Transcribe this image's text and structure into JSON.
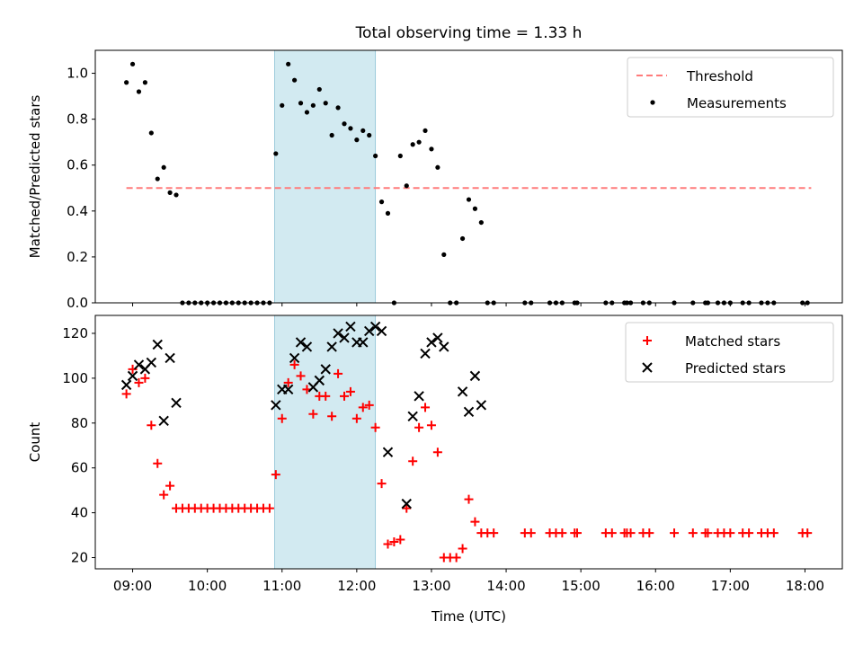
{
  "chart_data": [
    {
      "type": "scatter",
      "title": "Total observing time = 1.33 h",
      "ylabel": "Matched/Predicted stars",
      "xlabel": "",
      "ylim": [
        0,
        1.1
      ],
      "yticks": [
        "0.0",
        "0.2",
        "0.4",
        "0.6",
        "0.8",
        "1.0"
      ],
      "legend": {
        "position": "top-right",
        "entries": [
          {
            "label": "Threshold",
            "style": "dashed-line",
            "color": "#ff7b7b"
          },
          {
            "label": "Measurements",
            "style": "dot",
            "color": "#000000"
          }
        ]
      },
      "threshold": {
        "value": 0.5,
        "x_start": "08:55",
        "x_end": "18:05",
        "color": "#ff7b7b"
      },
      "shaded_span": {
        "x_start": "10:54",
        "x_end": "12:15",
        "color": "#add8e6"
      },
      "series": [
        {
          "name": "Measurements",
          "color": "#000000",
          "x": [
            "08:55",
            "09:00",
            "09:05",
            "09:10",
            "09:15",
            "09:20",
            "09:25",
            "09:30",
            "09:35",
            "09:40",
            "09:45",
            "09:50",
            "09:55",
            "10:00",
            "10:05",
            "10:10",
            "10:15",
            "10:20",
            "10:25",
            "10:30",
            "10:35",
            "10:40",
            "10:45",
            "10:50",
            "10:55",
            "11:00",
            "11:05",
            "11:10",
            "11:15",
            "11:20",
            "11:25",
            "11:30",
            "11:35",
            "11:40",
            "11:45",
            "11:50",
            "11:55",
            "12:00",
            "12:05",
            "12:10",
            "12:15",
            "12:20",
            "12:25",
            "12:30",
            "12:35",
            "12:40",
            "12:45",
            "12:50",
            "12:55",
            "13:00",
            "13:05",
            "13:10",
            "13:15",
            "13:20",
            "13:25",
            "13:30",
            "13:35",
            "13:40",
            "13:45",
            "13:50",
            "14:15",
            "14:20",
            "14:35",
            "14:40",
            "14:45",
            "14:55",
            "14:57",
            "15:20",
            "15:25",
            "15:35",
            "15:37",
            "15:40",
            "15:50",
            "15:55",
            "16:15",
            "16:30",
            "16:40",
            "16:42",
            "16:50",
            "16:55",
            "17:00",
            "17:10",
            "17:15",
            "17:25",
            "17:30",
            "17:35",
            "17:58",
            "18:02"
          ],
          "values": [
            0.96,
            1.04,
            0.92,
            0.96,
            0.74,
            0.54,
            0.59,
            0.48,
            0.47,
            0.0,
            0.0,
            0.0,
            0.0,
            0.0,
            0.0,
            0.0,
            0.0,
            0.0,
            0.0,
            0.0,
            0.0,
            0.0,
            0.0,
            0.0,
            0.65,
            0.86,
            1.04,
            0.97,
            0.87,
            0.83,
            0.86,
            0.93,
            0.87,
            0.73,
            0.85,
            0.78,
            0.76,
            0.71,
            0.75,
            0.73,
            0.64,
            0.44,
            0.39,
            0.0,
            0.64,
            0.51,
            0.69,
            0.7,
            0.75,
            0.67,
            0.59,
            0.21,
            0.0,
            0.0,
            0.28,
            0.45,
            0.41,
            0.35,
            0.0,
            0.0,
            0.0,
            0.0,
            0.0,
            0.0,
            0.0,
            0.0,
            0.0,
            0.0,
            0.0,
            0.0,
            0.0,
            0.0,
            0.0,
            0.0,
            0.0,
            0.0,
            0.0,
            0.0,
            0.0,
            0.0,
            0.0,
            0.0,
            0.0,
            0.0,
            0.0,
            0.0,
            0.0,
            0.0
          ]
        }
      ]
    },
    {
      "type": "scatter",
      "xlabel": "Time (UTC)",
      "ylabel": "Count",
      "ylim": [
        15,
        128
      ],
      "yticks": [
        "20",
        "40",
        "60",
        "80",
        "100",
        "120"
      ],
      "xticks": [
        "09:00",
        "10:00",
        "11:00",
        "12:00",
        "13:00",
        "14:00",
        "15:00",
        "16:00",
        "17:00",
        "18:00"
      ],
      "legend": {
        "position": "top-right",
        "entries": [
          {
            "label": "Matched stars",
            "style": "plus",
            "color": "#ff0000"
          },
          {
            "label": "Predicted stars",
            "style": "x",
            "color": "#000000"
          }
        ]
      },
      "shaded_span": {
        "x_start": "10:54",
        "x_end": "12:15",
        "color": "#add8e6"
      },
      "series": [
        {
          "name": "Matched stars",
          "marker": "plus",
          "color": "#ff0000",
          "x": [
            "08:55",
            "09:00",
            "09:05",
            "09:10",
            "09:15",
            "09:20",
            "09:25",
            "09:30",
            "09:35",
            "09:40",
            "09:45",
            "09:50",
            "09:55",
            "10:00",
            "10:05",
            "10:10",
            "10:15",
            "10:20",
            "10:25",
            "10:30",
            "10:35",
            "10:40",
            "10:45",
            "10:50",
            "10:55",
            "11:00",
            "11:05",
            "11:10",
            "11:15",
            "11:20",
            "11:25",
            "11:30",
            "11:35",
            "11:40",
            "11:45",
            "11:50",
            "11:55",
            "12:00",
            "12:05",
            "12:10",
            "12:15",
            "12:20",
            "12:25",
            "12:30",
            "12:35",
            "12:40",
            "12:45",
            "12:50",
            "12:55",
            "13:00",
            "13:05",
            "13:10",
            "13:15",
            "13:20",
            "13:25",
            "13:30",
            "13:35",
            "13:40",
            "13:45",
            "13:50",
            "14:15",
            "14:20",
            "14:35",
            "14:40",
            "14:45",
            "14:55",
            "14:57",
            "15:20",
            "15:25",
            "15:35",
            "15:37",
            "15:40",
            "15:50",
            "15:55",
            "16:15",
            "16:30",
            "16:40",
            "16:42",
            "16:50",
            "16:55",
            "17:00",
            "17:10",
            "17:15",
            "17:25",
            "17:30",
            "17:35",
            "17:58",
            "18:02"
          ],
          "values": [
            93,
            104,
            98,
            100,
            79,
            62,
            48,
            52,
            42,
            42,
            42,
            42,
            42,
            42,
            42,
            42,
            42,
            42,
            42,
            42,
            42,
            42,
            42,
            42,
            57,
            82,
            98,
            106,
            101,
            95,
            84,
            92,
            92,
            83,
            102,
            92,
            94,
            82,
            87,
            88,
            78,
            53,
            26,
            27,
            28,
            42,
            63,
            78,
            87,
            79,
            67,
            20,
            20,
            20,
            24,
            46,
            36,
            31,
            31,
            31,
            31,
            31,
            31,
            31,
            31,
            31,
            31,
            31,
            31,
            31,
            31,
            31,
            31,
            31,
            31,
            31,
            31,
            31,
            31,
            31,
            31,
            31,
            31,
            31,
            31,
            31,
            31,
            31
          ]
        },
        {
          "name": "Predicted stars",
          "marker": "x",
          "color": "#000000",
          "x": [
            "08:55",
            "09:00",
            "09:05",
            "09:10",
            "09:15",
            "09:20",
            "09:25",
            "09:30",
            "09:35",
            "10:55",
            "11:00",
            "11:05",
            "11:10",
            "11:15",
            "11:20",
            "11:25",
            "11:30",
            "11:35",
            "11:40",
            "11:45",
            "11:50",
            "11:55",
            "12:00",
            "12:05",
            "12:10",
            "12:15",
            "12:20",
            "12:25",
            "12:40",
            "12:45",
            "12:50",
            "12:55",
            "13:00",
            "13:05",
            "13:10",
            "13:25",
            "13:30",
            "13:35",
            "13:40"
          ],
          "values": [
            97,
            101,
            106,
            104,
            107,
            115,
            81,
            109,
            89,
            88,
            95,
            95,
            109,
            116,
            114,
            96,
            99,
            104,
            114,
            120,
            118,
            123,
            116,
            116,
            121,
            123,
            121,
            67,
            44,
            83,
            92,
            111,
            116,
            118,
            114,
            94,
            85,
            101,
            88
          ]
        }
      ]
    }
  ]
}
